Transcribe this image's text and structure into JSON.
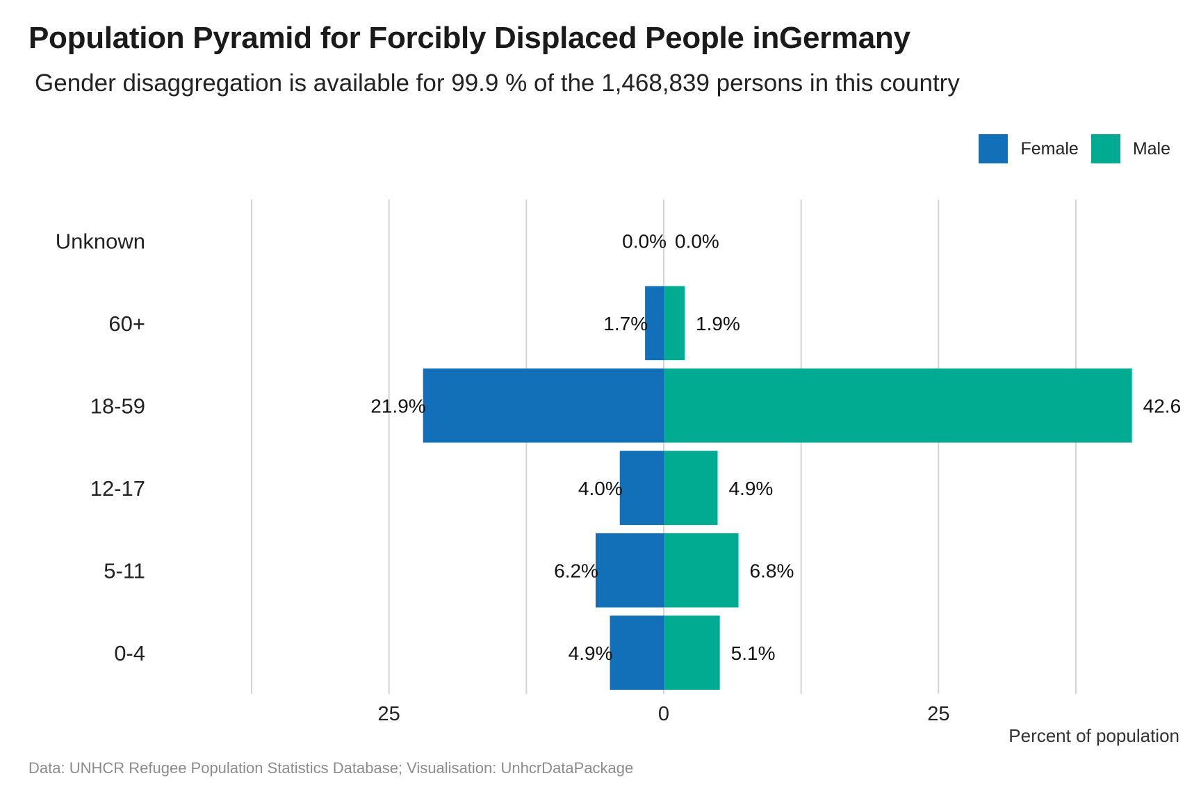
{
  "chart_data": {
    "type": "bar",
    "orientation": "horizontal",
    "title": "Population Pyramid for Forcibly Displaced People inGermany",
    "subtitle": "Gender disaggregation is available for 99.9 % of the 1,468,839 persons in this country",
    "xlabel": "Percent of population",
    "ylabel": "",
    "categories": [
      "Unknown",
      "60+",
      "18-59",
      "12-17",
      "5-11",
      "0-4"
    ],
    "series": [
      {
        "name": "Female",
        "color": "#1170b7",
        "values": [
          0.0,
          1.7,
          21.9,
          4.0,
          6.2,
          4.9
        ],
        "labels": [
          "0.0%",
          "1.7%",
          "21.9%",
          "4.0%",
          "6.2%",
          "4.9%"
        ]
      },
      {
        "name": "Male",
        "color": "#00ab92",
        "values": [
          0.0,
          1.9,
          42.6,
          4.9,
          6.8,
          5.1
        ],
        "labels": [
          "0.0%",
          "1.9%",
          "42.6",
          "4.9%",
          "6.8%",
          "5.1%"
        ]
      }
    ],
    "xlim": [
      -37.5,
      37.5
    ],
    "xticks": [
      -25,
      0,
      25
    ],
    "xtick_labels": [
      "25",
      "0",
      "25"
    ],
    "grid": true,
    "legend_position": "top-right"
  },
  "caption": "Data: UNHCR Refugee Population Statistics Database; Visualisation: UnhcrDataPackage"
}
